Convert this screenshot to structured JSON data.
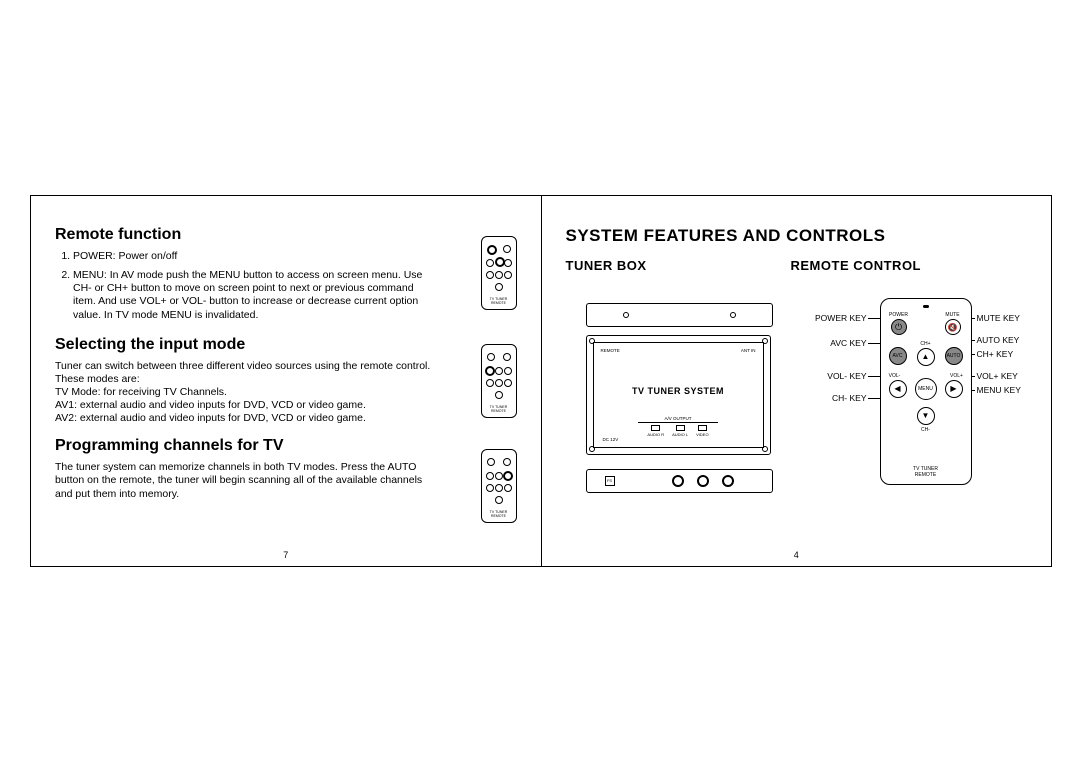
{
  "left_page": {
    "title_remote": "Remote function",
    "list": [
      "POWER: Power on/off",
      "MENU: In AV mode push the MENU button to access on screen menu. Use CH- or CH+ button to move on screen point to next or previous command item. And use VOL+ or VOL- button to increase or decrease current option value. In TV mode MENU is invalidated."
    ],
    "title_input": "Selecting the input mode",
    "input_body": "Tuner can switch between three different video sources using the remote control. These modes are:",
    "input_lines": [
      "TV Mode: for receiving  TV Channels.",
      "AV1: external audio and video inputs for DVD, VCD or video game.",
      "AV2: external audio and video inputs for DVD, VCD or video game."
    ],
    "title_prog": "Programming channels for TV",
    "prog_body": "The tuner system can memorize channels in both TV modes. Press the AUTO button on the remote, the tuner will begin scanning all of the available channels and put them into memory.",
    "page_number": "7",
    "thumb_label": "TV TUNER\nREMOTE"
  },
  "right_page": {
    "title": "SYSTEM FEATURES AND CONTROLS",
    "sub_tuner": "TUNER BOX",
    "sub_remote": "REMOTE CONTROL",
    "tuner_on_label": "TV TUNER SYSTEM",
    "tuner_top_left": "REMOTE",
    "tuner_top_right": "ANT IN",
    "av_group_label": "A/V OUTPUT",
    "ports": [
      "AUDIO R",
      "AUDIO L",
      "VIDEO"
    ],
    "dc_label": "DC 12V",
    "bottom_sq": "FS",
    "remote_btns": {
      "power": "POWER",
      "mute": "MUTE",
      "avc": "AVC",
      "chp": "CH+",
      "auto": "AUTO",
      "volm": "VOL-",
      "menu": "MENU",
      "volp": "VOL+",
      "chm": "CH-"
    },
    "remote_bottom": "TV TUNER\nREMOTE",
    "callouts_left": {
      "power": "POWER KEY",
      "avc": "AVC KEY",
      "volm": "VOL- KEY",
      "chm": "CH- KEY"
    },
    "callouts_right": {
      "mute": "MUTE KEY",
      "auto": "AUTO KEY",
      "chp": "CH+ KEY",
      "volp": "VOL+ KEY",
      "menu": "MENU KEY"
    },
    "page_number": "4"
  }
}
